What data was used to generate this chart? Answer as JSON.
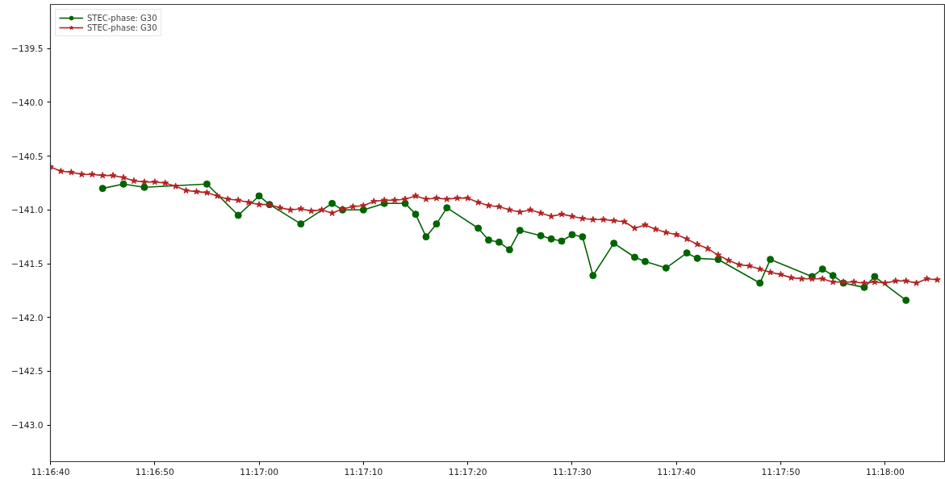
{
  "chart_data": {
    "type": "line",
    "xlim": [
      11.277778,
      11.301583
    ],
    "ylim": [
      -143.34,
      -139.09
    ],
    "xticks": [
      {
        "value": 11.277778,
        "label": "11:16:40"
      },
      {
        "value": 11.280556,
        "label": "11:16:50"
      },
      {
        "value": 11.283333,
        "label": "11:17:00"
      },
      {
        "value": 11.286111,
        "label": "11:17:10"
      },
      {
        "value": 11.288889,
        "label": "11:17:20"
      },
      {
        "value": 11.291667,
        "label": "11:17:30"
      },
      {
        "value": 11.294444,
        "label": "11:17:40"
      },
      {
        "value": 11.297222,
        "label": "11:17:50"
      },
      {
        "value": 11.3,
        "label": "11:18:00"
      }
    ],
    "yticks": [
      {
        "value": -139.5,
        "label": "−139.5"
      },
      {
        "value": -140.0,
        "label": "−140.0"
      },
      {
        "value": -140.5,
        "label": "−140.5"
      },
      {
        "value": -141.0,
        "label": "−141.0"
      },
      {
        "value": -141.5,
        "label": "−141.5"
      },
      {
        "value": -142.0,
        "label": "−142.0"
      },
      {
        "value": -142.5,
        "label": "−142.5"
      },
      {
        "value": -143.0,
        "label": "−143.0"
      }
    ],
    "grid": false,
    "legend": "top left",
    "line_style": "solid",
    "series": [
      {
        "name": "STEC-phase: G30",
        "color": "#006400",
        "marker": "circle",
        "x": [
          11.279167,
          11.279722,
          11.280278,
          11.281944,
          11.282778,
          11.283333,
          11.283611,
          11.284444,
          11.285278,
          11.285556,
          11.286111,
          11.286667,
          11.287222,
          11.2875,
          11.287778,
          11.288056,
          11.288333,
          11.289167,
          11.289444,
          11.289722,
          11.29,
          11.290278,
          11.290833,
          11.291111,
          11.291389,
          11.291667,
          11.291944,
          11.292222,
          11.292778,
          11.293333,
          11.293611,
          11.294167,
          11.294722,
          11.295,
          11.295556,
          11.296667,
          11.296944,
          11.298056,
          11.298333,
          11.298611,
          11.298889,
          11.299444,
          11.299722,
          11.300556
        ],
        "values": [
          -140.8,
          -140.76,
          -140.79,
          -140.76,
          -141.05,
          -140.87,
          -140.95,
          -141.13,
          -140.94,
          -141.0,
          -141.0,
          -140.94,
          -140.94,
          -141.04,
          -141.25,
          -141.13,
          -140.98,
          -141.17,
          -141.28,
          -141.3,
          -141.37,
          -141.19,
          -141.24,
          -141.27,
          -141.29,
          -141.23,
          -141.25,
          -141.61,
          -141.31,
          -141.44,
          -141.48,
          -141.54,
          -141.4,
          -141.45,
          -141.46,
          -141.68,
          -141.46,
          -141.62,
          -141.55,
          -141.61,
          -141.68,
          -141.72,
          -141.62,
          -141.84
        ]
      },
      {
        "name": "STEC-phase: G30",
        "color": "#b22222",
        "marker": "star",
        "x": [
          11.277778,
          11.278056,
          11.278333,
          11.278611,
          11.278889,
          11.279167,
          11.279444,
          11.279722,
          11.28,
          11.280278,
          11.280556,
          11.280833,
          11.281111,
          11.281389,
          11.281667,
          11.281944,
          11.282222,
          11.2825,
          11.282778,
          11.283056,
          11.283333,
          11.283611,
          11.283889,
          11.284167,
          11.284444,
          11.284722,
          11.285,
          11.285278,
          11.285556,
          11.285833,
          11.286111,
          11.286389,
          11.286667,
          11.286944,
          11.287222,
          11.2875,
          11.287778,
          11.288056,
          11.288333,
          11.288611,
          11.288889,
          11.289167,
          11.289444,
          11.289722,
          11.29,
          11.290278,
          11.290556,
          11.290833,
          11.291111,
          11.291389,
          11.291667,
          11.291944,
          11.292222,
          11.2925,
          11.292778,
          11.293056,
          11.293333,
          11.293611,
          11.293889,
          11.294167,
          11.294444,
          11.294722,
          11.295,
          11.295278,
          11.295556,
          11.295833,
          11.296111,
          11.296389,
          11.296667,
          11.296944,
          11.297222,
          11.2975,
          11.297778,
          11.298056,
          11.298333,
          11.298611,
          11.298889,
          11.299167,
          11.299444,
          11.299722,
          11.3,
          11.300278,
          11.300556,
          11.300833,
          11.301111,
          11.301389
        ],
        "values": [
          -140.6,
          -140.64,
          -140.65,
          -140.67,
          -140.67,
          -140.68,
          -140.68,
          -140.7,
          -140.73,
          -140.74,
          -140.74,
          -140.75,
          -140.78,
          -140.82,
          -140.83,
          -140.84,
          -140.87,
          -140.9,
          -140.91,
          -140.93,
          -140.95,
          -140.95,
          -140.98,
          -141.0,
          -140.99,
          -141.01,
          -141.0,
          -141.03,
          -140.99,
          -140.97,
          -140.96,
          -140.92,
          -140.91,
          -140.91,
          -140.9,
          -140.87,
          -140.9,
          -140.89,
          -140.9,
          -140.89,
          -140.89,
          -140.93,
          -140.96,
          -140.97,
          -141.0,
          -141.02,
          -141.0,
          -141.03,
          -141.06,
          -141.04,
          -141.06,
          -141.08,
          -141.09,
          -141.09,
          -141.1,
          -141.11,
          -141.17,
          -141.14,
          -141.18,
          -141.21,
          -141.23,
          -141.27,
          -141.32,
          -141.36,
          -141.42,
          -141.47,
          -141.51,
          -141.52,
          -141.55,
          -141.58,
          -141.6,
          -141.63,
          -141.64,
          -141.64,
          -141.64,
          -141.67,
          -141.67,
          -141.67,
          -141.68,
          -141.67,
          -141.68,
          -141.66,
          -141.66,
          -141.68,
          -141.64,
          -141.65
        ]
      }
    ]
  }
}
